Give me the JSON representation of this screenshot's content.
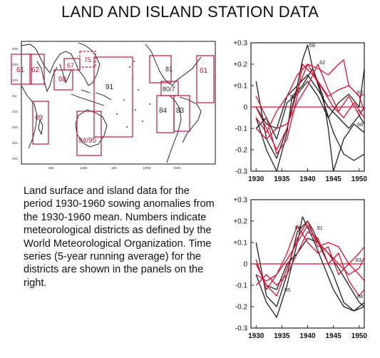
{
  "slide": {
    "title": "LAND AND ISLAND STATION DATA",
    "description": "Land surface and island data for the period 1930-1960 sowing anomalies from the 1930-1960 mean. Numbers indicate meteorological districts as defined by the World Meteorological Organization. Time series (5-year running average) for the districts are shown in the panels on the right."
  },
  "map": {
    "lat_labels": [
      "30N",
      "20N",
      "10N",
      "EQ",
      "10S",
      "20S",
      "30S",
      "40S"
    ],
    "lon_labels": [
      "60E",
      "120E",
      "180",
      "120W",
      "60W"
    ],
    "district_boxes": [
      {
        "label": "61"
      },
      {
        "label": "62"
      },
      {
        "label": "67"
      },
      {
        "label": "68"
      },
      {
        "label": "75"
      },
      {
        "label": "91"
      },
      {
        "label": "69"
      },
      {
        "label": "94/95"
      },
      {
        "label": "81"
      },
      {
        "label": "80/7"
      },
      {
        "label": "84"
      },
      {
        "label": "83"
      },
      {
        "label": "61"
      }
    ],
    "colors": {
      "box": "#c0143c",
      "coast": "#111111"
    }
  },
  "chart_data": [
    {
      "type": "line",
      "title": "",
      "xlabel": "",
      "ylabel": "",
      "xlim": [
        1929,
        1951
      ],
      "ylim": [
        -0.3,
        0.3
      ],
      "x_ticks": [
        "1930",
        "1935",
        "1940",
        "1945",
        "1950"
      ],
      "y_ticks": [
        "+0.3",
        "+0.2",
        "+0.1",
        "0",
        "-0.1",
        "-0.2",
        "-0.3"
      ],
      "zero_line_color": "#dd1133",
      "annotations": [
        {
          "text": "58",
          "x": 1940.3,
          "y": 0.28
        },
        {
          "text": "62",
          "x": 1942.3,
          "y": 0.2
        },
        {
          "text": "78",
          "x": 1936.4,
          "y": 0.04
        },
        {
          "text": "62",
          "x": 1949.6,
          "y": 0.06
        },
        {
          "text": "67",
          "x": 1949.6,
          "y": -0.03
        },
        {
          "text": "68",
          "x": 1949.6,
          "y": -0.09
        }
      ],
      "series": [
        {
          "color": "#222222",
          "x": [
            1930,
            1932,
            1934,
            1936,
            1938,
            1939,
            1940,
            1941,
            1943,
            1945,
            1947,
            1949,
            1951
          ],
          "values": [
            0.12,
            -0.15,
            -0.24,
            -0.1,
            0.1,
            0.22,
            0.29,
            0.18,
            0.03,
            -0.12,
            -0.22,
            -0.25,
            -0.22
          ]
        },
        {
          "color": "#222222",
          "x": [
            1930,
            1932,
            1934,
            1936,
            1937,
            1939,
            1941,
            1943,
            1944,
            1945,
            1947,
            1949,
            1951
          ],
          "values": [
            -0.05,
            -0.2,
            -0.3,
            -0.12,
            0.05,
            0.1,
            0.18,
            0.05,
            -0.1,
            -0.3,
            -0.15,
            -0.08,
            -0.12
          ]
        },
        {
          "color": "#222222",
          "x": [
            1930,
            1932,
            1934,
            1936,
            1938,
            1940,
            1942,
            1944,
            1946,
            1948,
            1950,
            1951
          ],
          "values": [
            0.0,
            -0.08,
            -0.1,
            0.05,
            0.1,
            0.15,
            0.08,
            0.0,
            -0.05,
            -0.1,
            -0.04,
            -0.08
          ]
        },
        {
          "color": "#222222",
          "x": [
            1930,
            1932,
            1934,
            1936,
            1938,
            1940,
            1942,
            1944,
            1946,
            1948,
            1950,
            1951
          ],
          "values": [
            -0.1,
            -0.05,
            -0.15,
            0.02,
            0.06,
            0.12,
            0.05,
            -0.05,
            0.02,
            0.06,
            0.0,
            0.18
          ]
        },
        {
          "color": "#dd1133",
          "x": [
            1930,
            1932,
            1934,
            1936,
            1938,
            1940,
            1942,
            1944,
            1946,
            1948,
            1950,
            1951
          ],
          "values": [
            -0.05,
            -0.12,
            -0.02,
            0.05,
            0.15,
            0.2,
            0.12,
            0.05,
            0.08,
            0.1,
            0.05,
            0.06
          ]
        },
        {
          "color": "#dd1133",
          "x": [
            1930,
            1932,
            1934,
            1936,
            1938,
            1940,
            1942,
            1944,
            1946,
            1947,
            1948,
            1950,
            1951
          ],
          "values": [
            0.0,
            -0.1,
            -0.2,
            -0.1,
            0.08,
            0.2,
            0.18,
            0.15,
            0.2,
            0.22,
            0.1,
            0.05,
            -0.02
          ]
        },
        {
          "color": "#dd1133",
          "x": [
            1930,
            1932,
            1934,
            1936,
            1938,
            1940,
            1942,
            1944,
            1946,
            1948,
            1950,
            1951
          ],
          "values": [
            -0.1,
            -0.15,
            -0.1,
            -0.08,
            0.02,
            0.1,
            0.2,
            0.08,
            -0.02,
            0.05,
            -0.04,
            0.0
          ]
        },
        {
          "color": "#dd1133",
          "x": [
            1930,
            1932,
            1934,
            1936,
            1938,
            1939,
            1941,
            1943,
            1945,
            1947,
            1949,
            1951
          ],
          "values": [
            0.05,
            -0.05,
            -0.22,
            -0.15,
            0.05,
            0.2,
            0.15,
            0.08,
            0.0,
            -0.05,
            0.02,
            -0.05
          ]
        }
      ]
    },
    {
      "type": "line",
      "title": "",
      "xlabel": "",
      "ylabel": "",
      "xlim": [
        1929,
        1951
      ],
      "ylim": [
        -0.3,
        0.3
      ],
      "x_ticks": [
        "1930",
        "1935",
        "1940",
        "1945",
        "1950"
      ],
      "y_ticks": [
        "+0.3",
        "+0.2",
        "+0.1",
        "0",
        "-0.1",
        "-0.2",
        "-0.3"
      ],
      "zero_line_color": "#dd1133",
      "annotations": [
        {
          "text": "94",
          "x": 1937.5,
          "y": 0.16
        },
        {
          "text": "91",
          "x": 1941.8,
          "y": 0.16
        },
        {
          "text": "83",
          "x": 1949.3,
          "y": 0.01
        },
        {
          "text": "95",
          "x": 1935.5,
          "y": -0.13
        },
        {
          "text": "84",
          "x": 1949.6,
          "y": -0.16
        }
      ],
      "series": [
        {
          "color": "#222222",
          "x": [
            1930,
            1932,
            1934,
            1936,
            1938,
            1940,
            1941,
            1943,
            1945,
            1947,
            1949,
            1951
          ],
          "values": [
            0.1,
            -0.15,
            -0.2,
            -0.05,
            0.15,
            0.2,
            0.16,
            0.05,
            -0.05,
            -0.18,
            -0.22,
            -0.18
          ]
        },
        {
          "color": "#222222",
          "x": [
            1930,
            1932,
            1934,
            1936,
            1938,
            1939,
            1941,
            1943,
            1945,
            1947,
            1949,
            1951
          ],
          "values": [
            -0.05,
            -0.18,
            -0.25,
            -0.1,
            0.1,
            0.22,
            0.12,
            0.0,
            -0.12,
            -0.2,
            -0.22,
            -0.2
          ]
        },
        {
          "color": "#222222",
          "x": [
            1930,
            1932,
            1934,
            1936,
            1938,
            1940,
            1942,
            1944,
            1946,
            1948,
            1950,
            1951
          ],
          "values": [
            0.0,
            -0.1,
            -0.12,
            0.0,
            0.05,
            0.12,
            0.1,
            0.05,
            -0.02,
            -0.1,
            -0.18,
            -0.2
          ]
        },
        {
          "color": "#dd1133",
          "x": [
            1930,
            1932,
            1934,
            1936,
            1938,
            1940,
            1942,
            1944,
            1946,
            1948,
            1950,
            1951
          ],
          "values": [
            -0.05,
            -0.08,
            -0.05,
            0.02,
            0.1,
            0.18,
            0.1,
            0.05,
            0.0,
            -0.05,
            -0.02,
            0.03
          ]
        },
        {
          "color": "#dd1133",
          "x": [
            1930,
            1932,
            1934,
            1936,
            1938,
            1940,
            1942,
            1944,
            1946,
            1948,
            1950,
            1951
          ],
          "values": [
            0.0,
            -0.1,
            -0.15,
            -0.02,
            0.12,
            0.2,
            0.08,
            0.1,
            0.08,
            0.0,
            -0.05,
            -0.08
          ]
        },
        {
          "color": "#dd1133",
          "x": [
            1930,
            1932,
            1934,
            1936,
            1938,
            1940,
            1942,
            1944,
            1946,
            1948,
            1950,
            1951
          ],
          "values": [
            -0.1,
            -0.05,
            -0.1,
            -0.05,
            0.05,
            0.15,
            0.12,
            0.0,
            0.05,
            -0.08,
            -0.15,
            -0.12
          ]
        },
        {
          "color": "#dd1133",
          "x": [
            1930,
            1932,
            1934,
            1936,
            1938,
            1940,
            1942,
            1944,
            1946,
            1948,
            1950,
            1951
          ],
          "values": [
            0.02,
            -0.12,
            -0.05,
            0.05,
            0.18,
            0.1,
            0.05,
            0.08,
            -0.05,
            0.0,
            0.05,
            0.08
          ]
        }
      ]
    }
  ]
}
